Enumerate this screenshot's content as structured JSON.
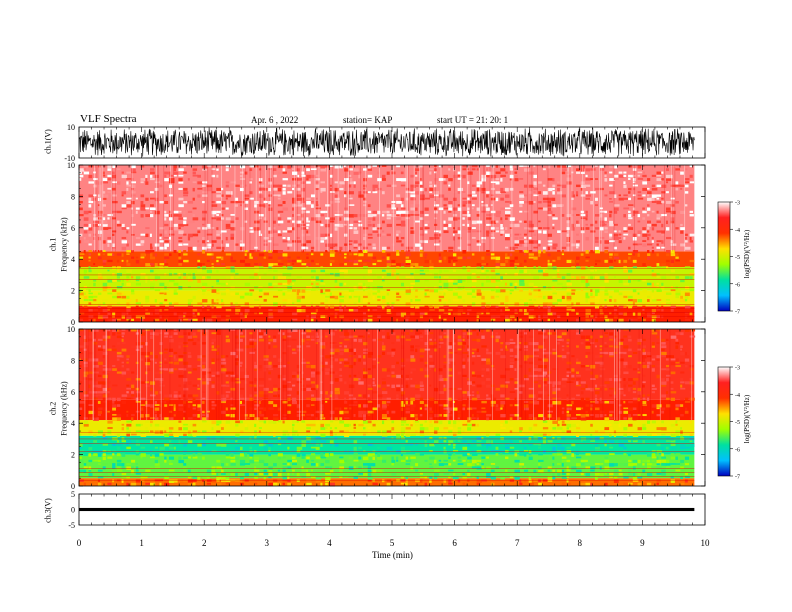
{
  "header": {
    "title": "VLF Spectra",
    "date": "Apr. 6 , 2022",
    "station": "station= KAP",
    "start": "start UT = 21: 20: 1"
  },
  "colorbar": {
    "label": "log(PSD)(V²/Hz)",
    "ticks": [
      "-3",
      "-4",
      "-5",
      "-6",
      "-7"
    ],
    "colors": [
      "#ffffff",
      "#ff2020",
      "#ff3000",
      "#ffe000",
      "#a0ff00",
      "#00e0a0",
      "#00c0ff",
      "#0000c0"
    ]
  },
  "chart_data": [
    {
      "type": "line",
      "title": "VLF Spectra",
      "ylabel": "ch.1(V)",
      "ylim": [
        -10,
        10
      ],
      "yticks": [
        "10",
        "-10"
      ],
      "xlim": [
        0,
        10
      ],
      "description_values": "dense oscillating waveform spanning roughly -10 to 10 V"
    },
    {
      "type": "heatmap",
      "ylabel": "ch.1\nFrequency (kHz)",
      "ylabel_top": "ch.1",
      "ylabel_bottom": "Frequency (kHz)",
      "ylim": [
        0,
        10
      ],
      "yticks": [
        "0",
        "2",
        "4",
        "6",
        "8",
        "10"
      ],
      "xlim": [
        0,
        10
      ],
      "bands": [
        {
          "f_low": 0.0,
          "f_high": 1.0,
          "log_psd": -4.0
        },
        {
          "f_low": 1.0,
          "f_high": 2.0,
          "log_psd": -4.6
        },
        {
          "f_low": 2.0,
          "f_high": 3.5,
          "log_psd": -4.8
        },
        {
          "f_low": 3.5,
          "f_high": 4.5,
          "log_psd": -4.1
        },
        {
          "f_low": 4.5,
          "f_high": 10.0,
          "log_psd": -3.3
        }
      ]
    },
    {
      "type": "heatmap",
      "ylabel": "ch.2\nFrequency (kHz)",
      "ylabel_top": "ch.2",
      "ylabel_bottom": "Frequency (kHz)",
      "ylim": [
        0,
        10
      ],
      "yticks": [
        "0",
        "2",
        "4",
        "6",
        "8",
        "10"
      ],
      "xlim": [
        0,
        10
      ],
      "bands": [
        {
          "f_low": 0.0,
          "f_high": 0.5,
          "log_psd": -4.2
        },
        {
          "f_low": 0.5,
          "f_high": 2.0,
          "log_psd": -5.2
        },
        {
          "f_low": 2.0,
          "f_high": 3.2,
          "log_psd": -5.5
        },
        {
          "f_low": 3.2,
          "f_high": 4.2,
          "log_psd": -4.6
        },
        {
          "f_low": 4.2,
          "f_high": 5.5,
          "log_psd": -4.0
        },
        {
          "f_low": 5.5,
          "f_high": 10.0,
          "log_psd": -3.8
        }
      ]
    },
    {
      "type": "line",
      "ylabel": "ch.3(V)",
      "ylim": [
        -5,
        5
      ],
      "yticks": [
        "5",
        "0",
        "-5"
      ],
      "xlim": [
        0,
        10
      ],
      "xlabel": "Time (min)",
      "xticks": [
        "0",
        "1",
        "2",
        "3",
        "4",
        "5",
        "6",
        "7",
        "8",
        "9",
        "10"
      ]
    }
  ]
}
